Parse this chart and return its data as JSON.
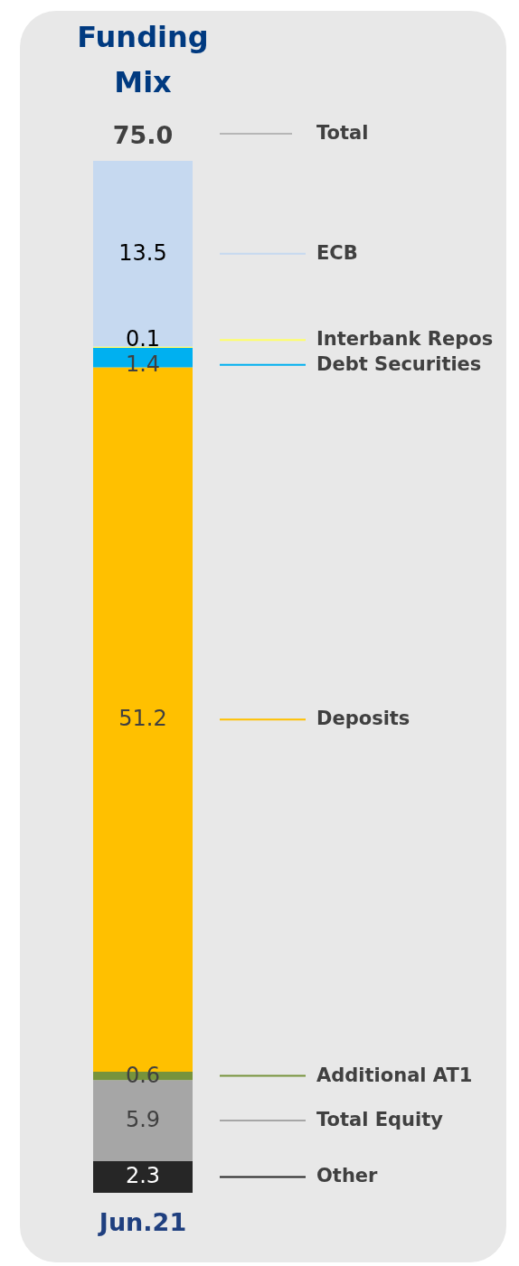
{
  "chart_data": {
    "type": "bar",
    "title": "Funding Mix",
    "categories": [
      "Jun.21"
    ],
    "stacked": true,
    "data_labels": true,
    "legend": "right",
    "totals": [
      "75.0"
    ],
    "annotations": [
      "Total"
    ],
    "series": [
      {
        "name": "Other",
        "color": "#262626",
        "values": [
          2.3
        ]
      },
      {
        "name": "Total Equity",
        "color": "#a6a6a6",
        "values": [
          5.9
        ]
      },
      {
        "name": "Additional AT1",
        "color": "#77933c",
        "values": [
          0.6
        ]
      },
      {
        "name": "Deposits",
        "color": "#ffc000",
        "values": [
          51.2
        ]
      },
      {
        "name": "Debt Securities",
        "color": "#00b0f0",
        "values": [
          1.4
        ]
      },
      {
        "name": "Interbank Repos",
        "color": "#ffff66",
        "values": [
          0.1
        ]
      },
      {
        "name": "ECB",
        "color": "#c6d9f0",
        "values": [
          13.5
        ]
      }
    ]
  }
}
